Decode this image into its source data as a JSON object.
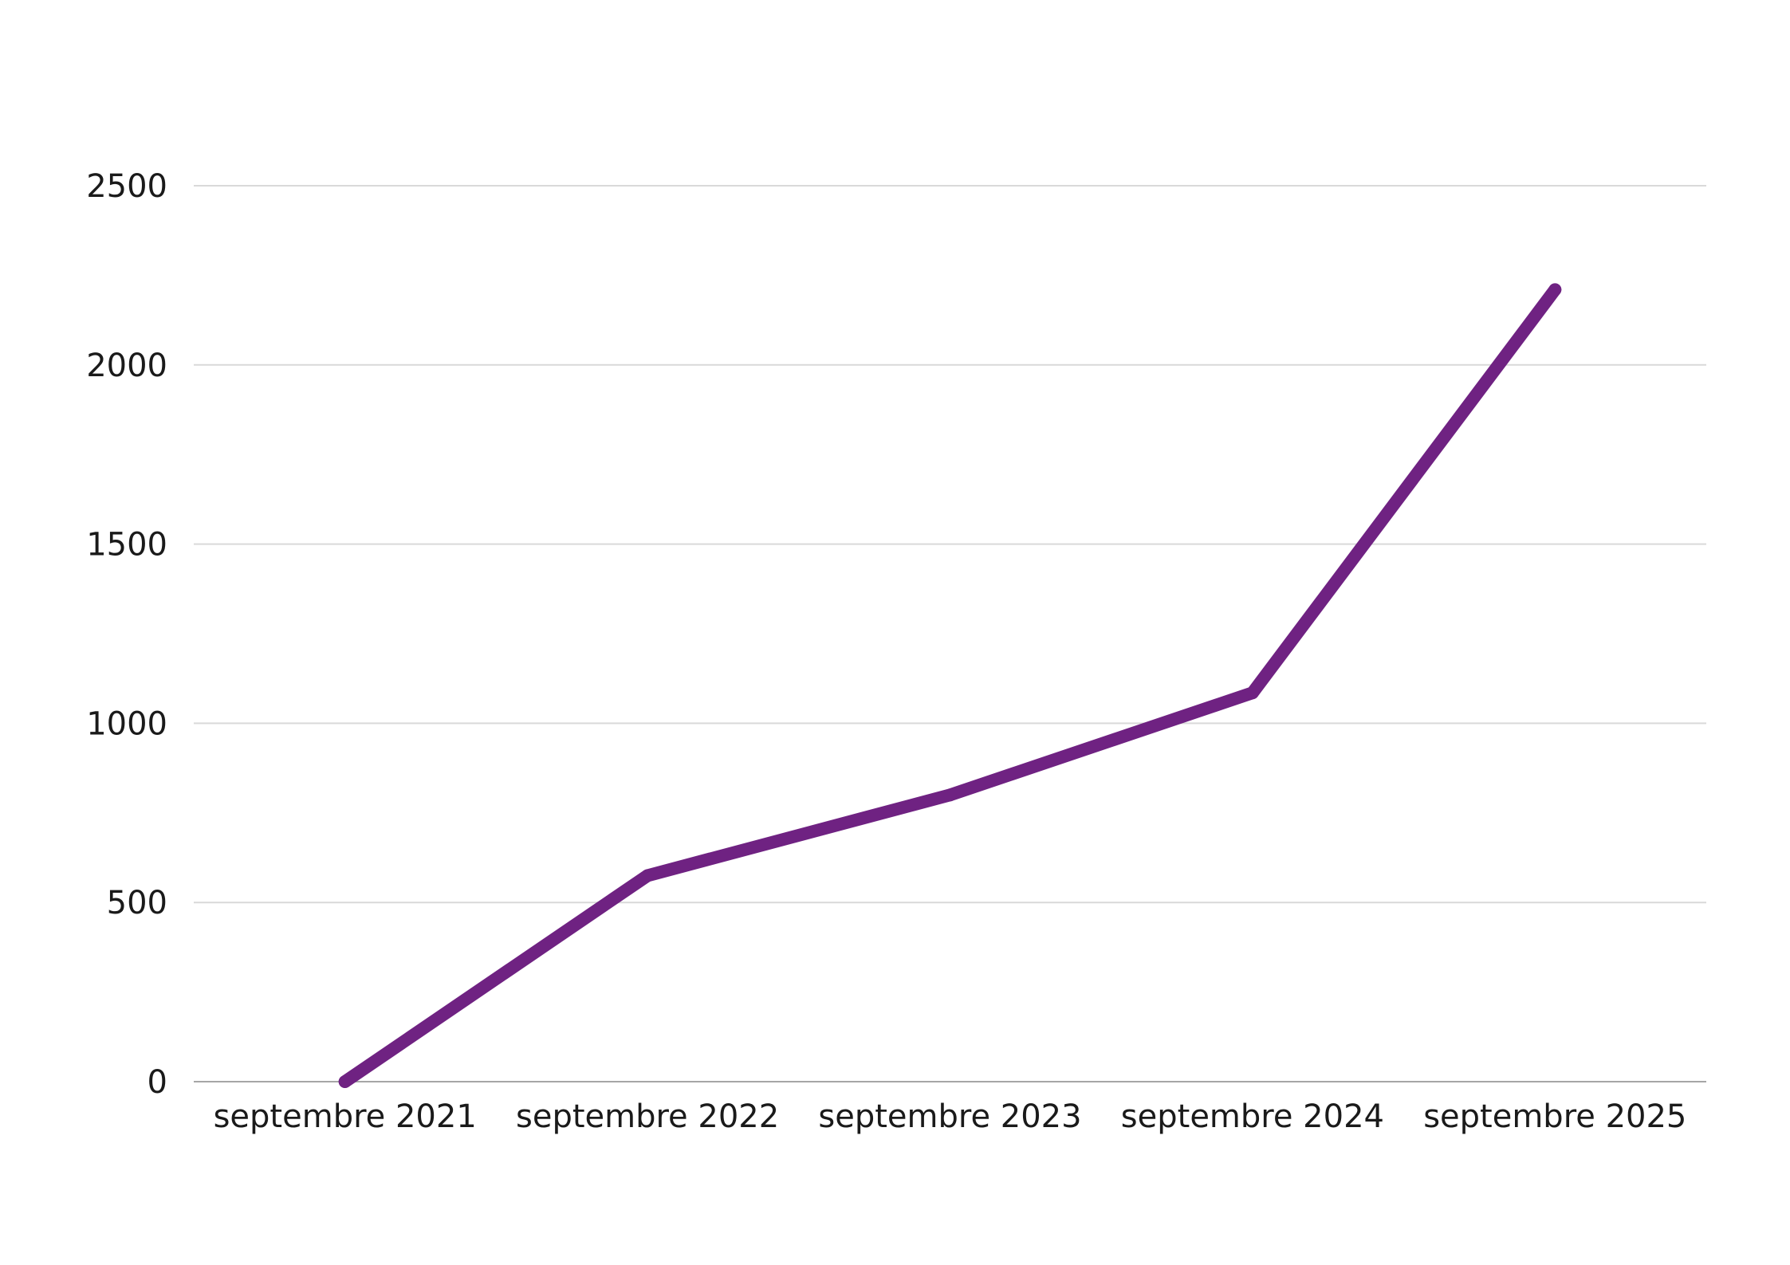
{
  "chart_data": {
    "type": "line",
    "title": "",
    "xlabel": "",
    "ylabel": "",
    "categories": [
      "septembre 2021",
      "septembre 2022",
      "septembre 2023",
      "septembre 2024",
      "septembre 2025"
    ],
    "series": [
      {
        "values": [
          0,
          575,
          800,
          1085,
          2210
        ],
        "color": "#6f2282"
      }
    ],
    "yticks": [
      "0",
      "500",
      "1000",
      "1500",
      "2000",
      "2500"
    ],
    "ylim": [
      0,
      2500
    ],
    "grid": true,
    "legend": "none",
    "colors": {
      "grid": "#d9d9d9",
      "axis": "#a6a6a6",
      "text": "#1a1a1a"
    }
  }
}
